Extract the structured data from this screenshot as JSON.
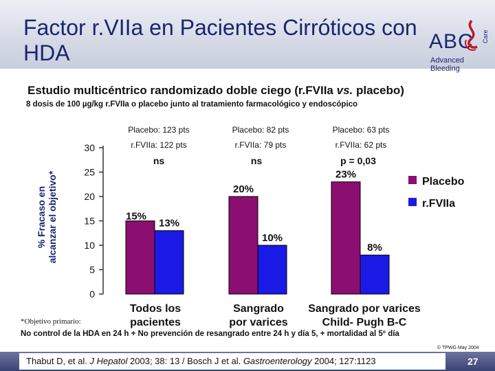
{
  "header": {
    "title": "Factor r.VIIa en Pacientes Cirróticos con HDA",
    "logo_text": "ABC",
    "logo_care": "Care",
    "logo_subtitle": "Advanced Bleeding"
  },
  "subtitle_prefix": "Estudio multicéntrico randomizado doble ciego (r.FVIIa ",
  "subtitle_vs": "vs.",
  "subtitle_suffix": " placebo)",
  "subtitle2": "8 dosis de 100 µg/kg r.FVIIa o placebo junto al tratamiento farmacológico y endoscópico",
  "chart_data": {
    "type": "bar",
    "ylabel": "% Fracaso en alcanzar el objetivo*",
    "ylim": [
      0,
      30
    ],
    "yticks": [
      0,
      5,
      10,
      15,
      20,
      25,
      30
    ],
    "categories": [
      "Todos los pacientes",
      "Sangrado por varices",
      "Sangrado por varices Child- Pugh B-C"
    ],
    "series": [
      {
        "name": "Placebo",
        "color": "#8b0f70",
        "values": [
          15,
          20,
          23
        ],
        "labels": [
          "15%",
          "20%",
          "23%"
        ]
      },
      {
        "name": "r.FVIIa",
        "color": "#1a1ae6",
        "values": [
          13,
          10,
          8
        ],
        "labels": [
          "13%",
          "10%",
          "8%"
        ]
      }
    ],
    "group_headers": [
      [
        "Placebo: 123 pts",
        "r.FVIIa: 122 pts"
      ],
      [
        "Placebo: 82 pts",
        "r.FVIIa: 79 pts"
      ],
      [
        "Placebo: 63 pts",
        "r.FVIIa: 62 pts"
      ]
    ],
    "significance": [
      "ns",
      "ns",
      "p = 0,03"
    ],
    "legend_position": "right"
  },
  "category_lines": {
    "cat1_l1": "Todos los",
    "cat1_l2": "pacientes",
    "cat2_l1": "Sangrado",
    "cat2_l2": "por varices",
    "cat3_l1": "Sangrado por varices",
    "cat3_l2": "Child- Pugh B-C"
  },
  "footnote": "*Objetivo primario:",
  "definition": "No control de la HDA en 24 h + No prevención de resangrado entre 24 h y día 5, + mortalidad al 5º día",
  "copyright": "© TPWG May 2004",
  "citation": {
    "part1": "Thabut D, et al. ",
    "journal1": "J Hepatol",
    "part2": " 2003; 38: 13 / Bosch J et al. ",
    "journal2": "Gastroenterology",
    "part3": " 2004; 127:1123"
  },
  "page_number": "27"
}
